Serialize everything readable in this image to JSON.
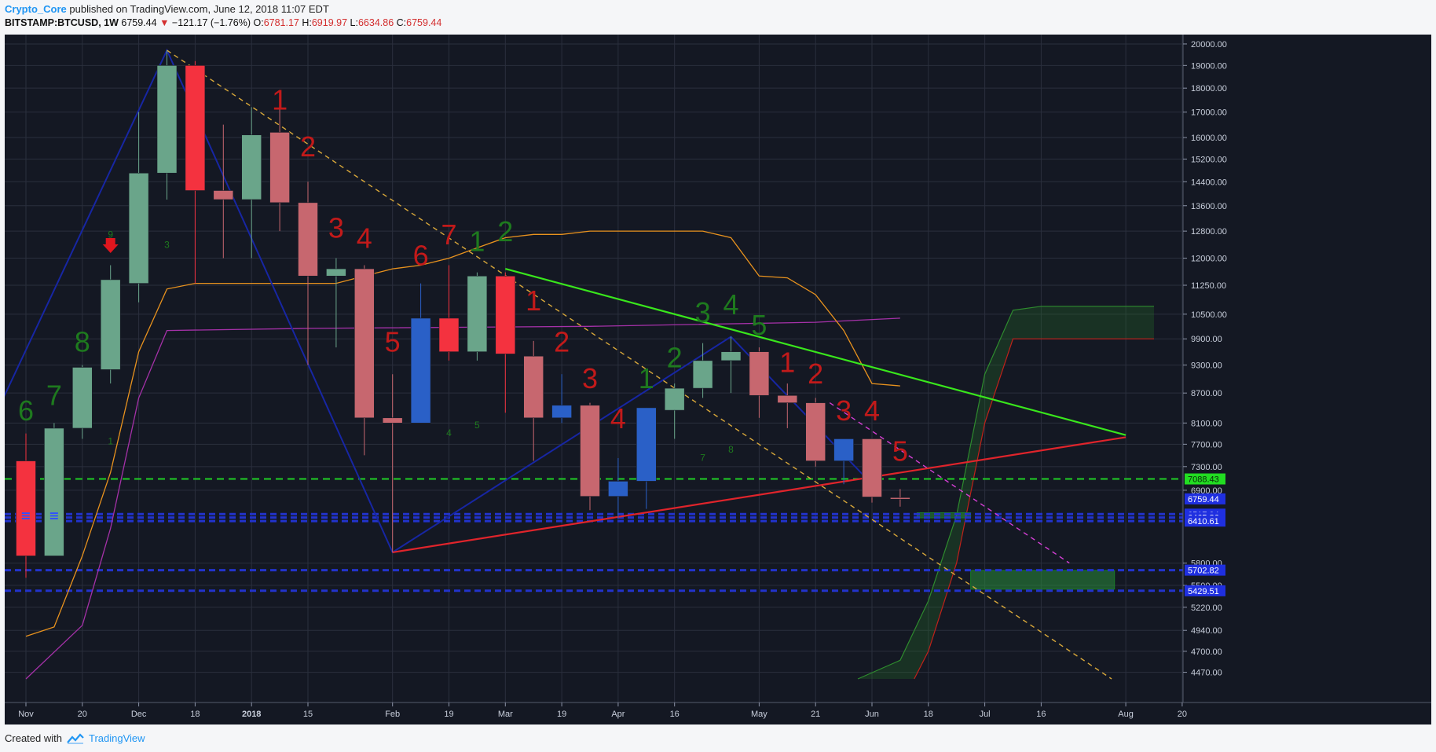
{
  "header": {
    "author": "Crypto_Core",
    "published_text": "published on TradingView.com, June 12, 2018 11:07 EDT",
    "symbol": "BITSTAMP:BTCUSD, 1W",
    "last": "6759.44",
    "change_arrow": "▼",
    "change": "−121.17 (−1.76%)",
    "o_label": "O:",
    "o": "6781.17",
    "h_label": "H:",
    "h": "6919.97",
    "l_label": "L:",
    "l": "6634.86",
    "c_label": "C:",
    "c": "6759.44"
  },
  "footer": {
    "created_with": "Created with",
    "brand": "TradingView"
  },
  "colors": {
    "background": "#141823",
    "grid": "#2a2f3d",
    "bull_candle": "#6aa58a",
    "bear_candle": "#c7676f",
    "strong_bear": "#f4323f",
    "blue_candle": "#2a60c7",
    "orange_band": "#e8921e",
    "purple_line": "#a531a8",
    "green_trend": "#39e61c",
    "red_trend": "#e0242b",
    "blue_outline": "#1726a3",
    "td_green": "#1e7a1e",
    "td_red": "#c21a1a"
  },
  "chart_data": {
    "type": "candlestick",
    "symbol": "BITSTAMP:BTCUSD",
    "interval": "1W",
    "y_scale": "log",
    "ylim": [
      4400,
      20300
    ],
    "y_ticks": [
      20000,
      19000,
      18000,
      17000,
      16000,
      15200,
      14400,
      13600,
      12800,
      12000,
      11250,
      10500,
      9900,
      9300,
      8700,
      8100,
      7700,
      7300,
      6900,
      5800,
      5500,
      5220,
      4940,
      4700,
      4470
    ],
    "x_ticks": [
      {
        "label": "Nov",
        "t": 0,
        "bold": false
      },
      {
        "label": "20",
        "t": 2,
        "bold": false
      },
      {
        "label": "Dec",
        "t": 4,
        "bold": false
      },
      {
        "label": "18",
        "t": 6,
        "bold": false
      },
      {
        "label": "2018",
        "t": 8,
        "bold": true
      },
      {
        "label": "15",
        "t": 10,
        "bold": false
      },
      {
        "label": "Feb",
        "t": 13,
        "bold": false
      },
      {
        "label": "19",
        "t": 15,
        "bold": false
      },
      {
        "label": "Mar",
        "t": 17,
        "bold": false
      },
      {
        "label": "19",
        "t": 19,
        "bold": false
      },
      {
        "label": "Apr",
        "t": 21,
        "bold": false
      },
      {
        "label": "16",
        "t": 23,
        "bold": false
      },
      {
        "label": "May",
        "t": 26,
        "bold": false
      },
      {
        "label": "21",
        "t": 28,
        "bold": false
      },
      {
        "label": "Jun",
        "t": 30,
        "bold": false
      },
      {
        "label": "18",
        "t": 32,
        "bold": false
      },
      {
        "label": "Jul",
        "t": 34,
        "bold": false
      },
      {
        "label": "16",
        "t": 36,
        "bold": false
      },
      {
        "label": "Aug",
        "t": 39,
        "bold": false
      },
      {
        "label": "20",
        "t": 41,
        "bold": false
      }
    ],
    "candles": [
      {
        "t": 0,
        "o": 7400,
        "h": 7900,
        "l": 5600,
        "c": 5900,
        "color": "strong_bear"
      },
      {
        "t": 1,
        "o": 5900,
        "h": 8100,
        "l": 5900,
        "c": 8000,
        "color": "bull"
      },
      {
        "t": 2,
        "o": 8000,
        "h": 9300,
        "l": 7800,
        "c": 9250,
        "color": "bull"
      },
      {
        "t": 3,
        "o": 9200,
        "h": 11800,
        "l": 8900,
        "c": 11400,
        "color": "bull"
      },
      {
        "t": 4,
        "o": 11300,
        "h": 17000,
        "l": 10800,
        "c": 14700,
        "color": "bull"
      },
      {
        "t": 5,
        "o": 14700,
        "h": 19700,
        "l": 13800,
        "c": 19000,
        "color": "bull"
      },
      {
        "t": 6,
        "o": 19000,
        "h": 19200,
        "l": 11300,
        "c": 14100,
        "color": "strong_bear"
      },
      {
        "t": 7,
        "o": 14100,
        "h": 16500,
        "l": 12000,
        "c": 13800,
        "color": "bear"
      },
      {
        "t": 8,
        "o": 13800,
        "h": 17200,
        "l": 12000,
        "c": 16100,
        "color": "bull"
      },
      {
        "t": 9,
        "o": 16200,
        "h": 17100,
        "l": 12800,
        "c": 13700,
        "color": "bear"
      },
      {
        "t": 10,
        "o": 13700,
        "h": 14400,
        "l": 9300,
        "c": 11500,
        "color": "bear"
      },
      {
        "t": 11,
        "o": 11500,
        "h": 12000,
        "l": 9700,
        "c": 11700,
        "color": "bull"
      },
      {
        "t": 12,
        "o": 11700,
        "h": 11800,
        "l": 7500,
        "c": 8200,
        "color": "bear"
      },
      {
        "t": 13,
        "o": 8200,
        "h": 9100,
        "l": 5950,
        "c": 8100,
        "color": "bear"
      },
      {
        "t": 14,
        "o": 8100,
        "h": 11300,
        "l": 8100,
        "c": 10400,
        "color": "blue"
      },
      {
        "t": 15,
        "o": 10400,
        "h": 11800,
        "l": 9400,
        "c": 9600,
        "color": "strong_bear"
      },
      {
        "t": 16,
        "o": 9600,
        "h": 11600,
        "l": 9400,
        "c": 11500,
        "color": "bull"
      },
      {
        "t": 17,
        "o": 11500,
        "h": 11600,
        "l": 8300,
        "c": 9550,
        "color": "strong_bear"
      },
      {
        "t": 18,
        "o": 9500,
        "h": 9850,
        "l": 7400,
        "c": 8200,
        "color": "bear"
      },
      {
        "t": 19,
        "o": 8200,
        "h": 9100,
        "l": 8100,
        "c": 8450,
        "color": "blue"
      },
      {
        "t": 20,
        "o": 8450,
        "h": 8500,
        "l": 6580,
        "c": 6800,
        "color": "bear"
      },
      {
        "t": 21,
        "o": 6800,
        "h": 7450,
        "l": 6450,
        "c": 7050,
        "color": "blue"
      },
      {
        "t": 22,
        "o": 7050,
        "h": 8400,
        "l": 6600,
        "c": 8400,
        "color": "blue"
      },
      {
        "t": 23,
        "o": 8350,
        "h": 8900,
        "l": 7800,
        "c": 8800,
        "color": "bull"
      },
      {
        "t": 24,
        "o": 8800,
        "h": 9800,
        "l": 8600,
        "c": 9400,
        "color": "bull"
      },
      {
        "t": 25,
        "o": 9400,
        "h": 9950,
        "l": 8700,
        "c": 9600,
        "color": "bull"
      },
      {
        "t": 26,
        "o": 9600,
        "h": 9700,
        "l": 8200,
        "c": 8650,
        "color": "bear"
      },
      {
        "t": 27,
        "o": 8650,
        "h": 8900,
        "l": 8000,
        "c": 8500,
        "color": "bear"
      },
      {
        "t": 28,
        "o": 8500,
        "h": 8600,
        "l": 7300,
        "c": 7400,
        "color": "bear"
      },
      {
        "t": 29,
        "o": 7400,
        "h": 7800,
        "l": 7000,
        "c": 7800,
        "color": "blue"
      },
      {
        "t": 30,
        "o": 7800,
        "h": 7800,
        "l": 6700,
        "c": 6790,
        "color": "bear"
      },
      {
        "t": 31,
        "o": 6780,
        "h": 6920,
        "l": 6635,
        "c": 6759.44,
        "color": "bear"
      }
    ],
    "td_counts": [
      {
        "t": 0,
        "text": "6",
        "color": "green",
        "p": 8150,
        "size": "big"
      },
      {
        "t": 1,
        "text": "7",
        "color": "green",
        "p": 8450,
        "size": "big"
      },
      {
        "t": 2,
        "text": "8",
        "color": "green",
        "p": 9600,
        "size": "big"
      },
      {
        "t": 3,
        "text": "9",
        "color": "green",
        "p": 12600,
        "size": "small"
      },
      {
        "t": 3,
        "text": "1",
        "color": "green",
        "p": 7700,
        "size": "small"
      },
      {
        "t": 5,
        "text": "3",
        "color": "green",
        "p": 12300,
        "size": "small"
      },
      {
        "t": 9,
        "text": "1",
        "color": "red",
        "p": 17100,
        "size": "big"
      },
      {
        "t": 10,
        "text": "2",
        "color": "red",
        "p": 15300,
        "size": "big"
      },
      {
        "t": 11,
        "text": "3",
        "color": "red",
        "p": 12600,
        "size": "big"
      },
      {
        "t": 12,
        "text": "4",
        "color": "red",
        "p": 12300,
        "size": "big"
      },
      {
        "t": 13,
        "text": "5",
        "color": "red",
        "p": 9600,
        "size": "big"
      },
      {
        "t": 14,
        "text": "6",
        "color": "red",
        "p": 11800,
        "size": "big"
      },
      {
        "t": 15,
        "text": "7",
        "color": "red",
        "p": 12400,
        "size": "big"
      },
      {
        "t": 15,
        "text": "4",
        "color": "green",
        "p": 7850,
        "size": "small"
      },
      {
        "t": 16,
        "text": "1",
        "color": "green",
        "p": 12200,
        "size": "big"
      },
      {
        "t": 16,
        "text": "5",
        "color": "green",
        "p": 8000,
        "size": "small"
      },
      {
        "t": 17,
        "text": "2",
        "color": "green",
        "p": 12500,
        "size": "big"
      },
      {
        "t": 18,
        "text": "1",
        "color": "red",
        "p": 10600,
        "size": "big"
      },
      {
        "t": 19,
        "text": "2",
        "color": "red",
        "p": 9600,
        "size": "big"
      },
      {
        "t": 20,
        "text": "3",
        "color": "red",
        "p": 8800,
        "size": "big"
      },
      {
        "t": 21,
        "text": "4",
        "color": "red",
        "p": 8000,
        "size": "big"
      },
      {
        "t": 22,
        "text": "1",
        "color": "green",
        "p": 8800,
        "size": "big"
      },
      {
        "t": 23,
        "text": "2",
        "color": "green",
        "p": 9250,
        "size": "big"
      },
      {
        "t": 24,
        "text": "3",
        "color": "green",
        "p": 10300,
        "size": "big"
      },
      {
        "t": 24,
        "text": "7",
        "color": "green",
        "p": 7400,
        "size": "small"
      },
      {
        "t": 25,
        "text": "4",
        "color": "green",
        "p": 10500,
        "size": "big"
      },
      {
        "t": 25,
        "text": "8",
        "color": "green",
        "p": 7550,
        "size": "small"
      },
      {
        "t": 26,
        "text": "5",
        "color": "green",
        "p": 10000,
        "size": "big"
      },
      {
        "t": 27,
        "text": "1",
        "color": "red",
        "p": 9150,
        "size": "big"
      },
      {
        "t": 28,
        "text": "2",
        "color": "red",
        "p": 8900,
        "size": "big"
      },
      {
        "t": 29,
        "text": "3",
        "color": "red",
        "p": 8150,
        "size": "big"
      },
      {
        "t": 30,
        "text": "4",
        "color": "red",
        "p": 8150,
        "size": "big"
      },
      {
        "t": 31,
        "text": "5",
        "color": "red",
        "p": 7400,
        "size": "big"
      }
    ],
    "sell_arrow": {
      "t": 3,
      "p": 12400
    },
    "orange_band": [
      {
        "t": 0,
        "p": 4870
      },
      {
        "t": 1,
        "p": 4980
      },
      {
        "t": 2,
        "p": 5900
      },
      {
        "t": 3,
        "p": 7200
      },
      {
        "t": 4,
        "p": 9600
      },
      {
        "t": 5,
        "p": 11150
      },
      {
        "t": 6,
        "p": 11300
      },
      {
        "t": 7,
        "p": 11300
      },
      {
        "t": 8,
        "p": 11300
      },
      {
        "t": 9,
        "p": 11300
      },
      {
        "t": 10,
        "p": 11300
      },
      {
        "t": 11,
        "p": 11300
      },
      {
        "t": 12,
        "p": 11500
      },
      {
        "t": 13,
        "p": 11700
      },
      {
        "t": 14,
        "p": 11800
      },
      {
        "t": 15,
        "p": 12000
      },
      {
        "t": 16,
        "p": 12300
      },
      {
        "t": 17,
        "p": 12600
      },
      {
        "t": 18,
        "p": 12700
      },
      {
        "t": 19,
        "p": 12700
      },
      {
        "t": 20,
        "p": 12800
      },
      {
        "t": 21,
        "p": 12800
      },
      {
        "t": 22,
        "p": 12800
      },
      {
        "t": 23,
        "p": 12800
      },
      {
        "t": 24,
        "p": 12800
      },
      {
        "t": 25,
        "p": 12600
      },
      {
        "t": 26,
        "p": 11500
      },
      {
        "t": 27,
        "p": 11450
      },
      {
        "t": 28,
        "p": 11000
      },
      {
        "t": 29,
        "p": 10100
      },
      {
        "t": 30,
        "p": 8900
      },
      {
        "t": 31,
        "p": 8850
      }
    ],
    "purple_line": [
      {
        "t": 0,
        "p": 4400
      },
      {
        "t": 2,
        "p": 5000
      },
      {
        "t": 3,
        "p": 6300
      },
      {
        "t": 4,
        "p": 8600
      },
      {
        "t": 5,
        "p": 10100
      },
      {
        "t": 10,
        "p": 10150
      },
      {
        "t": 20,
        "p": 10200
      },
      {
        "t": 28,
        "p": 10300
      },
      {
        "t": 31,
        "p": 10400
      }
    ],
    "blue_zigzag": [
      {
        "t": -0.8,
        "p": 8600
      },
      {
        "t": 5,
        "p": 19700
      },
      {
        "t": 13,
        "p": 5950
      },
      {
        "t": 25,
        "p": 9950
      },
      {
        "t": 30,
        "p": 7000
      }
    ],
    "orange_dashed": [
      {
        "t": 5,
        "p": 19700
      },
      {
        "t": 38.5,
        "p": 4400
      }
    ],
    "magenta_dashed": [
      {
        "t": 28.5,
        "p": 8500
      },
      {
        "t": 37,
        "p": 5800
      }
    ],
    "green_trend": [
      {
        "t": 17,
        "p": 11700
      },
      {
        "t": 39,
        "p": 7870
      }
    ],
    "red_trend": [
      {
        "t": 13,
        "p": 5950
      },
      {
        "t": 39,
        "p": 7830
      }
    ],
    "horizontal_levels": [
      {
        "p": 7088.43,
        "style": "green-dashed",
        "label": "7088.43"
      },
      {
        "p": 6759.44,
        "style": "tag",
        "label": "6759.44"
      },
      {
        "p": 6517.94,
        "style": "blue-dashed",
        "label": "6517.94"
      },
      {
        "p": 6465.86,
        "style": "blue-dashed",
        "label": "6465.86"
      },
      {
        "p": 6410.61,
        "style": "blue-dashed",
        "label": "6410.61"
      },
      {
        "p": 5702.82,
        "style": "blue-dashed",
        "label": "5702.82"
      },
      {
        "p": 5429.51,
        "style": "blue-dashed",
        "label": "5429.51"
      }
    ],
    "cloud_upper": [
      {
        "t": 29.5,
        "p": 4400
      },
      {
        "t": 31,
        "p": 4600
      },
      {
        "t": 32,
        "p": 5300
      },
      {
        "t": 33,
        "p": 6500
      },
      {
        "t": 34,
        "p": 9100
      },
      {
        "t": 35,
        "p": 10600
      },
      {
        "t": 36,
        "p": 10700
      },
      {
        "t": 40,
        "p": 10700
      }
    ],
    "cloud_lower": [
      {
        "t": 31.5,
        "p": 4400
      },
      {
        "t": 32,
        "p": 4700
      },
      {
        "t": 33,
        "p": 5800
      },
      {
        "t": 34,
        "p": 8100
      },
      {
        "t": 35,
        "p": 9900
      },
      {
        "t": 36,
        "p": 9900
      },
      {
        "t": 40,
        "p": 9900
      }
    ],
    "zones": [
      {
        "t0": 31.6,
        "t1": 33.5,
        "p0": 6460,
        "p1": 6540
      },
      {
        "t0": 33.5,
        "t1": 38.6,
        "p0": 5450,
        "p1": 5700
      }
    ]
  }
}
